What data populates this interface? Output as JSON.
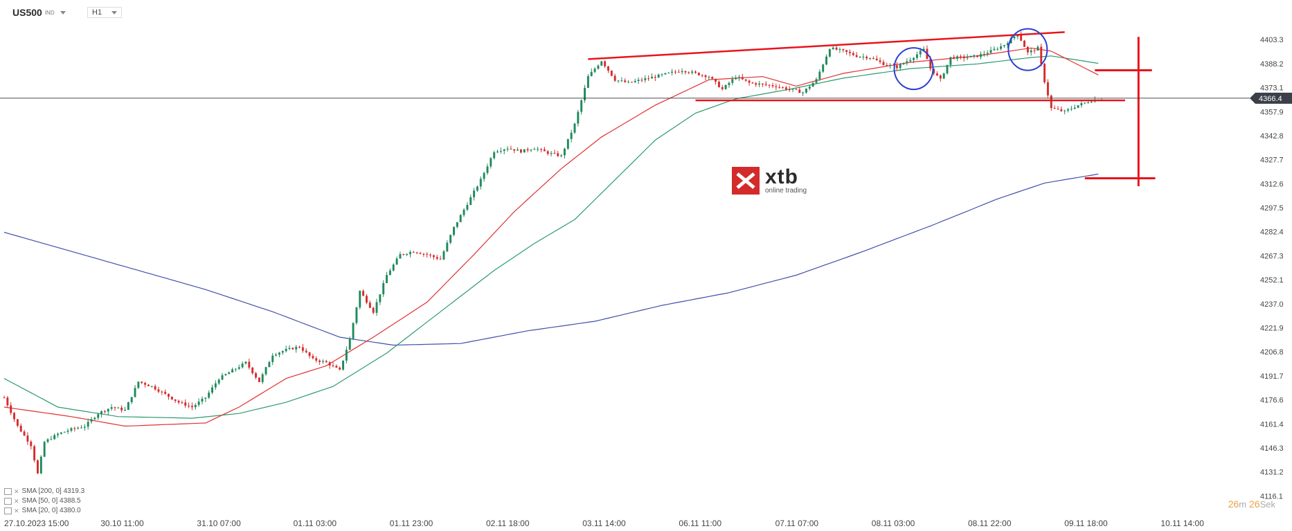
{
  "header": {
    "symbol": "US500",
    "symbol_tag": "IND",
    "timeframe": "H1"
  },
  "logo": {
    "name": "xtb",
    "tagline": "online trading"
  },
  "timer": {
    "minutes": "26",
    "min_unit": "m",
    "seconds": "26",
    "sec_unit": "Sek"
  },
  "legend": [
    {
      "label": "SMA [200, 0] 4319.3",
      "color": "#3f4fa8"
    },
    {
      "label": "SMA [50, 0] 4388.5",
      "color": "#2b9a6e"
    },
    {
      "label": "SMA [20, 0] 4380.0",
      "color": "#e03030"
    }
  ],
  "colors": {
    "up": "#1f8a5c",
    "down": "#d72c2c",
    "sma200": "#3f4fa8",
    "sma50": "#2b9a6e",
    "sma20": "#e03030",
    "annotation": "#e8141c",
    "circle": "#2a3fd0"
  },
  "chart_data": {
    "type": "candlestick",
    "ylim": [
      4111,
      4416
    ],
    "y_ticks": [
      4403.3,
      4388.2,
      4373.1,
      4357.9,
      4342.8,
      4327.7,
      4312.6,
      4297.5,
      4282.4,
      4267.3,
      4252.1,
      4237.0,
      4221.9,
      4206.8,
      4191.7,
      4176.6,
      4161.4,
      4146.3,
      4131.2,
      4116.1
    ],
    "x_labels": [
      "27.10.2023 15:00",
      "30.10 11:00",
      "31.10 07:00",
      "01.11 03:00",
      "01.11 23:00",
      "02.11 18:00",
      "03.11 14:00",
      "06.11 11:00",
      "07.11 07:00",
      "08.11 03:00",
      "08.11 22:00",
      "09.11 18:00",
      "10.11 14:00"
    ],
    "current_price": "4366.4",
    "close_path": [
      [
        0,
        4178
      ],
      [
        4,
        4160
      ],
      [
        8,
        4148
      ],
      [
        10,
        4130
      ],
      [
        12,
        4150
      ],
      [
        16,
        4155
      ],
      [
        20,
        4158
      ],
      [
        24,
        4160
      ],
      [
        28,
        4168
      ],
      [
        32,
        4172
      ],
      [
        36,
        4170
      ],
      [
        40,
        4188
      ],
      [
        44,
        4185
      ],
      [
        48,
        4180
      ],
      [
        52,
        4175
      ],
      [
        56,
        4172
      ],
      [
        60,
        4178
      ],
      [
        64,
        4190
      ],
      [
        68,
        4195
      ],
      [
        72,
        4200
      ],
      [
        76,
        4188
      ],
      [
        80,
        4205
      ],
      [
        84,
        4208
      ],
      [
        88,
        4210
      ],
      [
        92,
        4202
      ],
      [
        96,
        4200
      ],
      [
        100,
        4195
      ],
      [
        103,
        4215
      ],
      [
        106,
        4245
      ],
      [
        110,
        4232
      ],
      [
        114,
        4255
      ],
      [
        118,
        4268
      ],
      [
        122,
        4270
      ],
      [
        126,
        4268
      ],
      [
        130,
        4265
      ],
      [
        134,
        4285
      ],
      [
        138,
        4300
      ],
      [
        142,
        4315
      ],
      [
        146,
        4333
      ],
      [
        150,
        4335
      ],
      [
        154,
        4333
      ],
      [
        158,
        4335
      ],
      [
        162,
        4332
      ],
      [
        166,
        4330
      ],
      [
        170,
        4350
      ],
      [
        174,
        4380
      ],
      [
        178,
        4390
      ],
      [
        182,
        4378
      ],
      [
        186,
        4376
      ],
      [
        190,
        4378
      ],
      [
        194,
        4380
      ],
      [
        198,
        4382
      ],
      [
        202,
        4384
      ],
      [
        206,
        4382
      ],
      [
        210,
        4380
      ],
      [
        214,
        4372
      ],
      [
        218,
        4380
      ],
      [
        222,
        4376
      ],
      [
        226,
        4375
      ],
      [
        230,
        4374
      ],
      [
        234,
        4372
      ],
      [
        238,
        4370
      ],
      [
        242,
        4378
      ],
      [
        246,
        4398
      ],
      [
        250,
        4396
      ],
      [
        254,
        4393
      ],
      [
        258,
        4392
      ],
      [
        262,
        4388
      ],
      [
        266,
        4386
      ],
      [
        270,
        4391
      ],
      [
        274,
        4397
      ],
      [
        276,
        4385
      ],
      [
        279,
        4378
      ],
      [
        282,
        4392
      ],
      [
        286,
        4392
      ],
      [
        290,
        4393
      ],
      [
        294,
        4396
      ],
      [
        298,
        4400
      ],
      [
        302,
        4407
      ],
      [
        305,
        4395
      ],
      [
        308,
        4398
      ],
      [
        310,
        4377
      ],
      [
        312,
        4360
      ],
      [
        316,
        4358
      ],
      [
        320,
        4362
      ],
      [
        324,
        4365
      ],
      [
        327,
        4366
      ]
    ],
    "candle_count": 328,
    "sma20": [
      [
        0,
        4172
      ],
      [
        20,
        4166
      ],
      [
        36,
        4160
      ],
      [
        60,
        4162
      ],
      [
        70,
        4172
      ],
      [
        84,
        4190
      ],
      [
        96,
        4198
      ],
      [
        110,
        4216
      ],
      [
        126,
        4238
      ],
      [
        140,
        4268
      ],
      [
        152,
        4295
      ],
      [
        166,
        4322
      ],
      [
        178,
        4342
      ],
      [
        194,
        4362
      ],
      [
        210,
        4378
      ],
      [
        226,
        4380
      ],
      [
        236,
        4374
      ],
      [
        250,
        4382
      ],
      [
        270,
        4389
      ],
      [
        290,
        4393
      ],
      [
        306,
        4398
      ],
      [
        312,
        4396
      ],
      [
        327,
        4380
      ]
    ],
    "sma50": [
      [
        0,
        4190
      ],
      [
        16,
        4172
      ],
      [
        34,
        4166
      ],
      [
        56,
        4165
      ],
      [
        70,
        4168
      ],
      [
        84,
        4175
      ],
      [
        98,
        4185
      ],
      [
        114,
        4206
      ],
      [
        130,
        4232
      ],
      [
        146,
        4258
      ],
      [
        158,
        4275
      ],
      [
        170,
        4290
      ],
      [
        182,
        4315
      ],
      [
        194,
        4340
      ],
      [
        206,
        4357
      ],
      [
        218,
        4366
      ],
      [
        234,
        4372
      ],
      [
        250,
        4379
      ],
      [
        270,
        4385
      ],
      [
        290,
        4388
      ],
      [
        306,
        4392
      ],
      [
        312,
        4393
      ],
      [
        327,
        4388
      ]
    ],
    "sma200": [
      [
        0,
        4282
      ],
      [
        20,
        4270
      ],
      [
        40,
        4258
      ],
      [
        60,
        4246
      ],
      [
        80,
        4232
      ],
      [
        100,
        4216
      ],
      [
        116,
        4211
      ],
      [
        136,
        4212
      ],
      [
        156,
        4220
      ],
      [
        176,
        4226
      ],
      [
        196,
        4236
      ],
      [
        216,
        4244
      ],
      [
        236,
        4255
      ],
      [
        256,
        4270
      ],
      [
        276,
        4286
      ],
      [
        296,
        4303
      ],
      [
        310,
        4313
      ],
      [
        327,
        4319
      ]
    ],
    "annotations": {
      "trend_line": [
        [
          174,
          4391
        ],
        [
          316,
          4408
        ]
      ],
      "support_line": [
        [
          206,
          4365
        ],
        [
          334,
          4365
        ]
      ],
      "circles": [
        [
          271,
          4385
        ],
        [
          305,
          4397
        ]
      ],
      "target_vertical": {
        "x": 338,
        "y_from": 4405,
        "y_to": 4311
      },
      "target_ticks": [
        {
          "x1": 325,
          "x2": 342,
          "y": 4384
        },
        {
          "x1": 322,
          "x2": 343,
          "y": 4316
        }
      ]
    }
  }
}
